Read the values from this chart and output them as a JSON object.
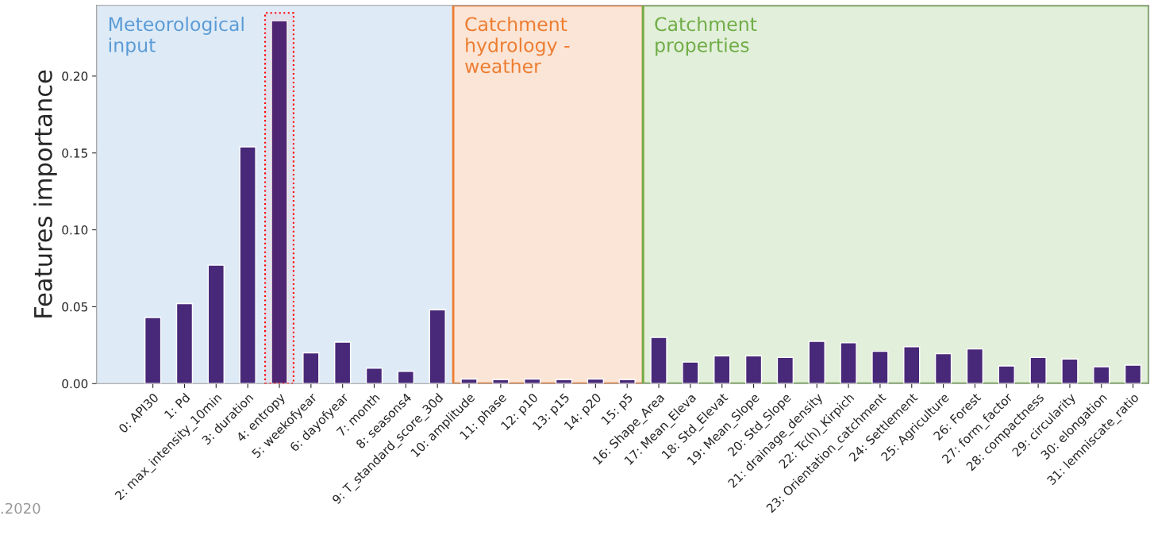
{
  "chart_data": {
    "type": "bar",
    "ylabel": "Features importance",
    "categories": [
      "0: API30",
      "1: Pd",
      "2: max_intensity_10min",
      "3: duration",
      "4: entropy",
      "5: weekofyear",
      "6: dayofyear",
      "7: month",
      "8: seasons4",
      "9: T_standard_score_30d",
      "10: amplitude",
      "11: phase",
      "12: p10",
      "13: p15",
      "14: p20",
      "15: p5",
      "16: Shape_Area",
      "17: Mean_Eleva",
      "18: Std_Elevat",
      "19: Mean_Slope",
      "20: Std_Slope",
      "21: drainage_density",
      "22: Tc(h)_Kirpich",
      "23: Orientation_catchment",
      "24: Settlement",
      "25: Agriculture",
      "26: Forest",
      "27: form_factor",
      "28: compactness",
      "29: circularity",
      "30: elongation",
      "31: lemniscate_ratio"
    ],
    "values": [
      0.043,
      0.052,
      0.077,
      0.154,
      0.236,
      0.02,
      0.027,
      0.01,
      0.008,
      0.048,
      0.003,
      0.0026,
      0.003,
      0.0026,
      0.003,
      0.0026,
      0.03,
      0.014,
      0.018,
      0.018,
      0.017,
      0.0275,
      0.0265,
      0.021,
      0.024,
      0.0195,
      0.0225,
      0.0115,
      0.017,
      0.016,
      0.011,
      0.012
    ],
    "color": "#482878",
    "ylim": [
      0,
      0.246
    ],
    "yticks": [
      {
        "value": 0,
        "label": "0.00"
      },
      0.05,
      {
        "value": 0.1,
        "label": "0.10"
      },
      0.15,
      {
        "value": 0.2,
        "label": "0.20"
      }
    ],
    "grid": false,
    "bands": [
      {
        "axis": "x",
        "from": "0: API30",
        "to": "9: T_standard_score_30d",
        "label": "Meteorological\ninput",
        "color": "#5b9bd5"
      },
      {
        "axis": "x",
        "from": "10: amplitude",
        "to": "15: p5",
        "label": "Catchment\nhydrology -\nweather",
        "color": "#ed7d31"
      },
      {
        "axis": "x",
        "from": "16: Shape_Area",
        "to": "31: lemniscate_ratio",
        "label": "Catchment\nproperties",
        "color": "#70ad47"
      },
      {
        "axis": "x",
        "from": "4: entropy",
        "to": "4: entropy",
        "color": "#ff0000"
      }
    ],
    "annotations": [
      ".2020"
    ]
  }
}
